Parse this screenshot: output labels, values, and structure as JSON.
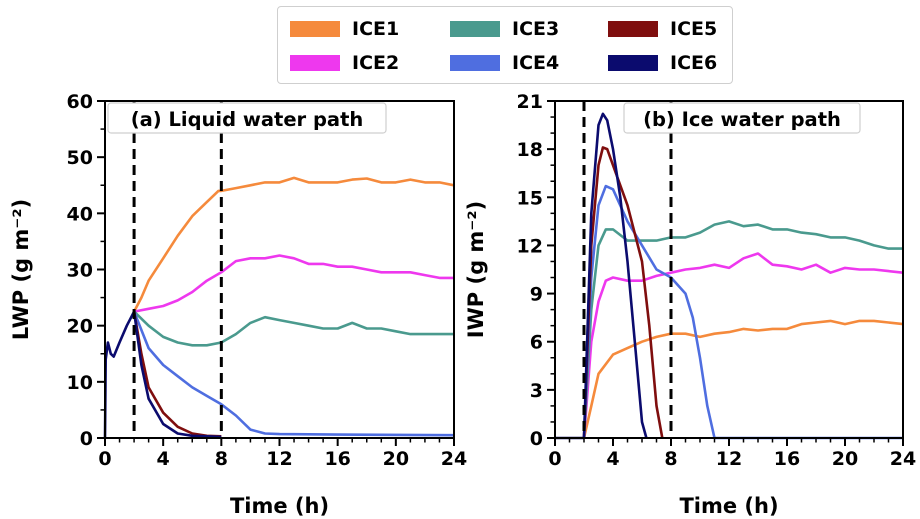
{
  "colors": {
    "ICE1": "#f58a3c",
    "ICE2": "#ee38ee",
    "ICE3": "#4a9a8e",
    "ICE4": "#4f6ee0",
    "ICE5": "#7f0e0e",
    "ICE6": "#0b0b6e"
  },
  "legend": {
    "placement": "top-center",
    "entries": [
      "ICE1",
      "ICE2",
      "ICE3",
      "ICE4",
      "ICE5",
      "ICE6"
    ]
  },
  "chart_data": [
    {
      "type": "line",
      "panel_title": "(a) Liquid water path",
      "xlabel": "Time (h)",
      "ylabel": "LWP (g m⁻²)",
      "xlim": [
        0,
        24
      ],
      "ylim": [
        0,
        60
      ],
      "xticks": [
        0,
        4,
        8,
        12,
        16,
        20,
        24
      ],
      "yticks": [
        0,
        10,
        20,
        30,
        40,
        50,
        60
      ],
      "vlines": [
        2,
        8
      ],
      "grid": false,
      "shared_prefix": [
        [
          0,
          0
        ],
        [
          0.05,
          14
        ],
        [
          0.2,
          17
        ],
        [
          0.4,
          15
        ],
        [
          0.6,
          14.5
        ],
        [
          1.0,
          17
        ],
        [
          1.5,
          20
        ],
        [
          2.0,
          22.5
        ]
      ],
      "series": [
        {
          "name": "ICE1",
          "points": [
            [
              2,
              22.5
            ],
            [
              2.5,
              25
            ],
            [
              3,
              28
            ],
            [
              4,
              32
            ],
            [
              5,
              36
            ],
            [
              6,
              39.5
            ],
            [
              7,
              42
            ],
            [
              7.8,
              44
            ],
            [
              8,
              44
            ],
            [
              9,
              44.5
            ],
            [
              10,
              45
            ],
            [
              11,
              45.5
            ],
            [
              12,
              45.5
            ],
            [
              13,
              46.3
            ],
            [
              14,
              45.5
            ],
            [
              15,
              45.5
            ],
            [
              16,
              45.5
            ],
            [
              17,
              46
            ],
            [
              18,
              46.2
            ],
            [
              19,
              45.5
            ],
            [
              20,
              45.5
            ],
            [
              21,
              46
            ],
            [
              22,
              45.5
            ],
            [
              23,
              45.5
            ],
            [
              24,
              45
            ]
          ]
        },
        {
          "name": "ICE2",
          "points": [
            [
              2,
              22.5
            ],
            [
              3,
              23
            ],
            [
              4,
              23.5
            ],
            [
              5,
              24.5
            ],
            [
              6,
              26
            ],
            [
              7,
              28
            ],
            [
              8,
              29.5
            ],
            [
              9,
              31.5
            ],
            [
              10,
              32
            ],
            [
              11,
              32
            ],
            [
              12,
              32.5
            ],
            [
              13,
              32
            ],
            [
              14,
              31
            ],
            [
              15,
              31
            ],
            [
              16,
              30.5
            ],
            [
              17,
              30.5
            ],
            [
              18,
              30
            ],
            [
              19,
              29.5
            ],
            [
              20,
              29.5
            ],
            [
              21,
              29.5
            ],
            [
              22,
              29
            ],
            [
              23,
              28.5
            ],
            [
              24,
              28.5
            ]
          ]
        },
        {
          "name": "ICE3",
          "points": [
            [
              2,
              22.5
            ],
            [
              3,
              20
            ],
            [
              4,
              18
            ],
            [
              5,
              17
            ],
            [
              6,
              16.5
            ],
            [
              7,
              16.5
            ],
            [
              8,
              17
            ],
            [
              9,
              18.5
            ],
            [
              10,
              20.5
            ],
            [
              11,
              21.5
            ],
            [
              12,
              21
            ],
            [
              13,
              20.5
            ],
            [
              14,
              20
            ],
            [
              15,
              19.5
            ],
            [
              16,
              19.5
            ],
            [
              17,
              20.5
            ],
            [
              18,
              19.5
            ],
            [
              19,
              19.5
            ],
            [
              20,
              19
            ],
            [
              21,
              18.5
            ],
            [
              22,
              18.5
            ],
            [
              23,
              18.5
            ],
            [
              24,
              18.5
            ]
          ]
        },
        {
          "name": "ICE4",
          "points": [
            [
              2,
              22.5
            ],
            [
              3,
              16
            ],
            [
              4,
              13
            ],
            [
              5,
              11
            ],
            [
              6,
              9
            ],
            [
              7,
              7.5
            ],
            [
              8,
              6
            ],
            [
              9,
              4
            ],
            [
              10,
              1.5
            ],
            [
              11,
              0.8
            ],
            [
              12,
              0.7
            ],
            [
              16,
              0.6
            ],
            [
              24,
              0.5
            ]
          ]
        },
        {
          "name": "ICE5",
          "points": [
            [
              2,
              22.5
            ],
            [
              2.5,
              15
            ],
            [
              3,
              9
            ],
            [
              4,
              4.5
            ],
            [
              5,
              2
            ],
            [
              6,
              0.8
            ],
            [
              7,
              0.4
            ],
            [
              8,
              0.3
            ]
          ]
        },
        {
          "name": "ICE6",
          "points": [
            [
              2,
              22.5
            ],
            [
              2.5,
              13
            ],
            [
              3,
              7
            ],
            [
              4,
              2.5
            ],
            [
              5,
              0.8
            ],
            [
              6,
              0.4
            ],
            [
              7,
              0.3
            ],
            [
              8,
              0.2
            ]
          ]
        }
      ]
    },
    {
      "type": "line",
      "panel_title": "(b) Ice water path",
      "xlabel": "Time (h)",
      "ylabel": "IWP (g m⁻²)",
      "xlim": [
        0,
        24
      ],
      "ylim": [
        0,
        21
      ],
      "xticks": [
        0,
        4,
        8,
        12,
        16,
        20,
        24
      ],
      "yticks": [
        0,
        3,
        6,
        9,
        12,
        15,
        18,
        21
      ],
      "vlines": [
        2,
        8
      ],
      "grid": false,
      "shared_prefix": [
        [
          0,
          0
        ],
        [
          2,
          0
        ]
      ],
      "series": [
        {
          "name": "ICE1",
          "points": [
            [
              2,
              0
            ],
            [
              2.5,
              2
            ],
            [
              3,
              4
            ],
            [
              4,
              5.2
            ],
            [
              5,
              5.6
            ],
            [
              6,
              6
            ],
            [
              7,
              6.3
            ],
            [
              8,
              6.5
            ],
            [
              9,
              6.5
            ],
            [
              10,
              6.3
            ],
            [
              11,
              6.5
            ],
            [
              12,
              6.6
            ],
            [
              13,
              6.8
            ],
            [
              14,
              6.7
            ],
            [
              15,
              6.8
            ],
            [
              16,
              6.8
            ],
            [
              17,
              7.1
            ],
            [
              18,
              7.2
            ],
            [
              19,
              7.3
            ],
            [
              20,
              7.1
            ],
            [
              21,
              7.3
            ],
            [
              22,
              7.3
            ],
            [
              23,
              7.2
            ],
            [
              24,
              7.1
            ]
          ]
        },
        {
          "name": "ICE2",
          "points": [
            [
              2,
              0
            ],
            [
              2.5,
              6
            ],
            [
              3,
              8.5
            ],
            [
              3.5,
              9.8
            ],
            [
              4,
              10
            ],
            [
              5,
              9.8
            ],
            [
              6,
              9.8
            ],
            [
              7,
              10.1
            ],
            [
              8,
              10.3
            ],
            [
              9,
              10.5
            ],
            [
              10,
              10.6
            ],
            [
              11,
              10.8
            ],
            [
              12,
              10.6
            ],
            [
              13,
              11.2
            ],
            [
              14,
              11.5
            ],
            [
              15,
              10.8
            ],
            [
              16,
              10.7
            ],
            [
              17,
              10.5
            ],
            [
              18,
              10.8
            ],
            [
              19,
              10.3
            ],
            [
              20,
              10.6
            ],
            [
              21,
              10.5
            ],
            [
              22,
              10.5
            ],
            [
              23,
              10.4
            ],
            [
              24,
              10.3
            ]
          ]
        },
        {
          "name": "ICE3",
          "points": [
            [
              2,
              0
            ],
            [
              2.5,
              8
            ],
            [
              3,
              12
            ],
            [
              3.5,
              13
            ],
            [
              4,
              13
            ],
            [
              5,
              12.3
            ],
            [
              6,
              12.3
            ],
            [
              7,
              12.3
            ],
            [
              8,
              12.5
            ],
            [
              9,
              12.5
            ],
            [
              10,
              12.8
            ],
            [
              11,
              13.3
            ],
            [
              12,
              13.5
            ],
            [
              13,
              13.2
            ],
            [
              14,
              13.3
            ],
            [
              15,
              13
            ],
            [
              16,
              13
            ],
            [
              17,
              12.8
            ],
            [
              18,
              12.7
            ],
            [
              19,
              12.5
            ],
            [
              20,
              12.5
            ],
            [
              21,
              12.3
            ],
            [
              22,
              12
            ],
            [
              23,
              11.8
            ],
            [
              24,
              11.8
            ]
          ]
        },
        {
          "name": "ICE4",
          "points": [
            [
              2,
              0
            ],
            [
              2.5,
              10
            ],
            [
              3,
              14.5
            ],
            [
              3.5,
              15.7
            ],
            [
              4,
              15.5
            ],
            [
              5,
              13.5
            ],
            [
              6,
              12
            ],
            [
              7,
              10.5
            ],
            [
              8,
              10
            ],
            [
              9,
              9
            ],
            [
              9.5,
              7.5
            ],
            [
              10,
              5
            ],
            [
              10.5,
              2
            ],
            [
              11,
              0
            ],
            [
              24,
              0
            ]
          ]
        },
        {
          "name": "ICE5",
          "points": [
            [
              2,
              0
            ],
            [
              2.5,
              12
            ],
            [
              3,
              17
            ],
            [
              3.3,
              18.1
            ],
            [
              3.6,
              18
            ],
            [
              4,
              17
            ],
            [
              5,
              14.5
            ],
            [
              6,
              11
            ],
            [
              6.5,
              7
            ],
            [
              7,
              2
            ],
            [
              7.4,
              0
            ]
          ]
        },
        {
          "name": "ICE6",
          "points": [
            [
              2,
              0
            ],
            [
              2.5,
              14
            ],
            [
              3,
              19.5
            ],
            [
              3.3,
              20.2
            ],
            [
              3.6,
              19.8
            ],
            [
              4,
              18
            ],
            [
              4.5,
              15
            ],
            [
              5,
              11
            ],
            [
              5.5,
              6
            ],
            [
              6,
              1
            ],
            [
              6.3,
              0
            ]
          ]
        }
      ]
    }
  ]
}
